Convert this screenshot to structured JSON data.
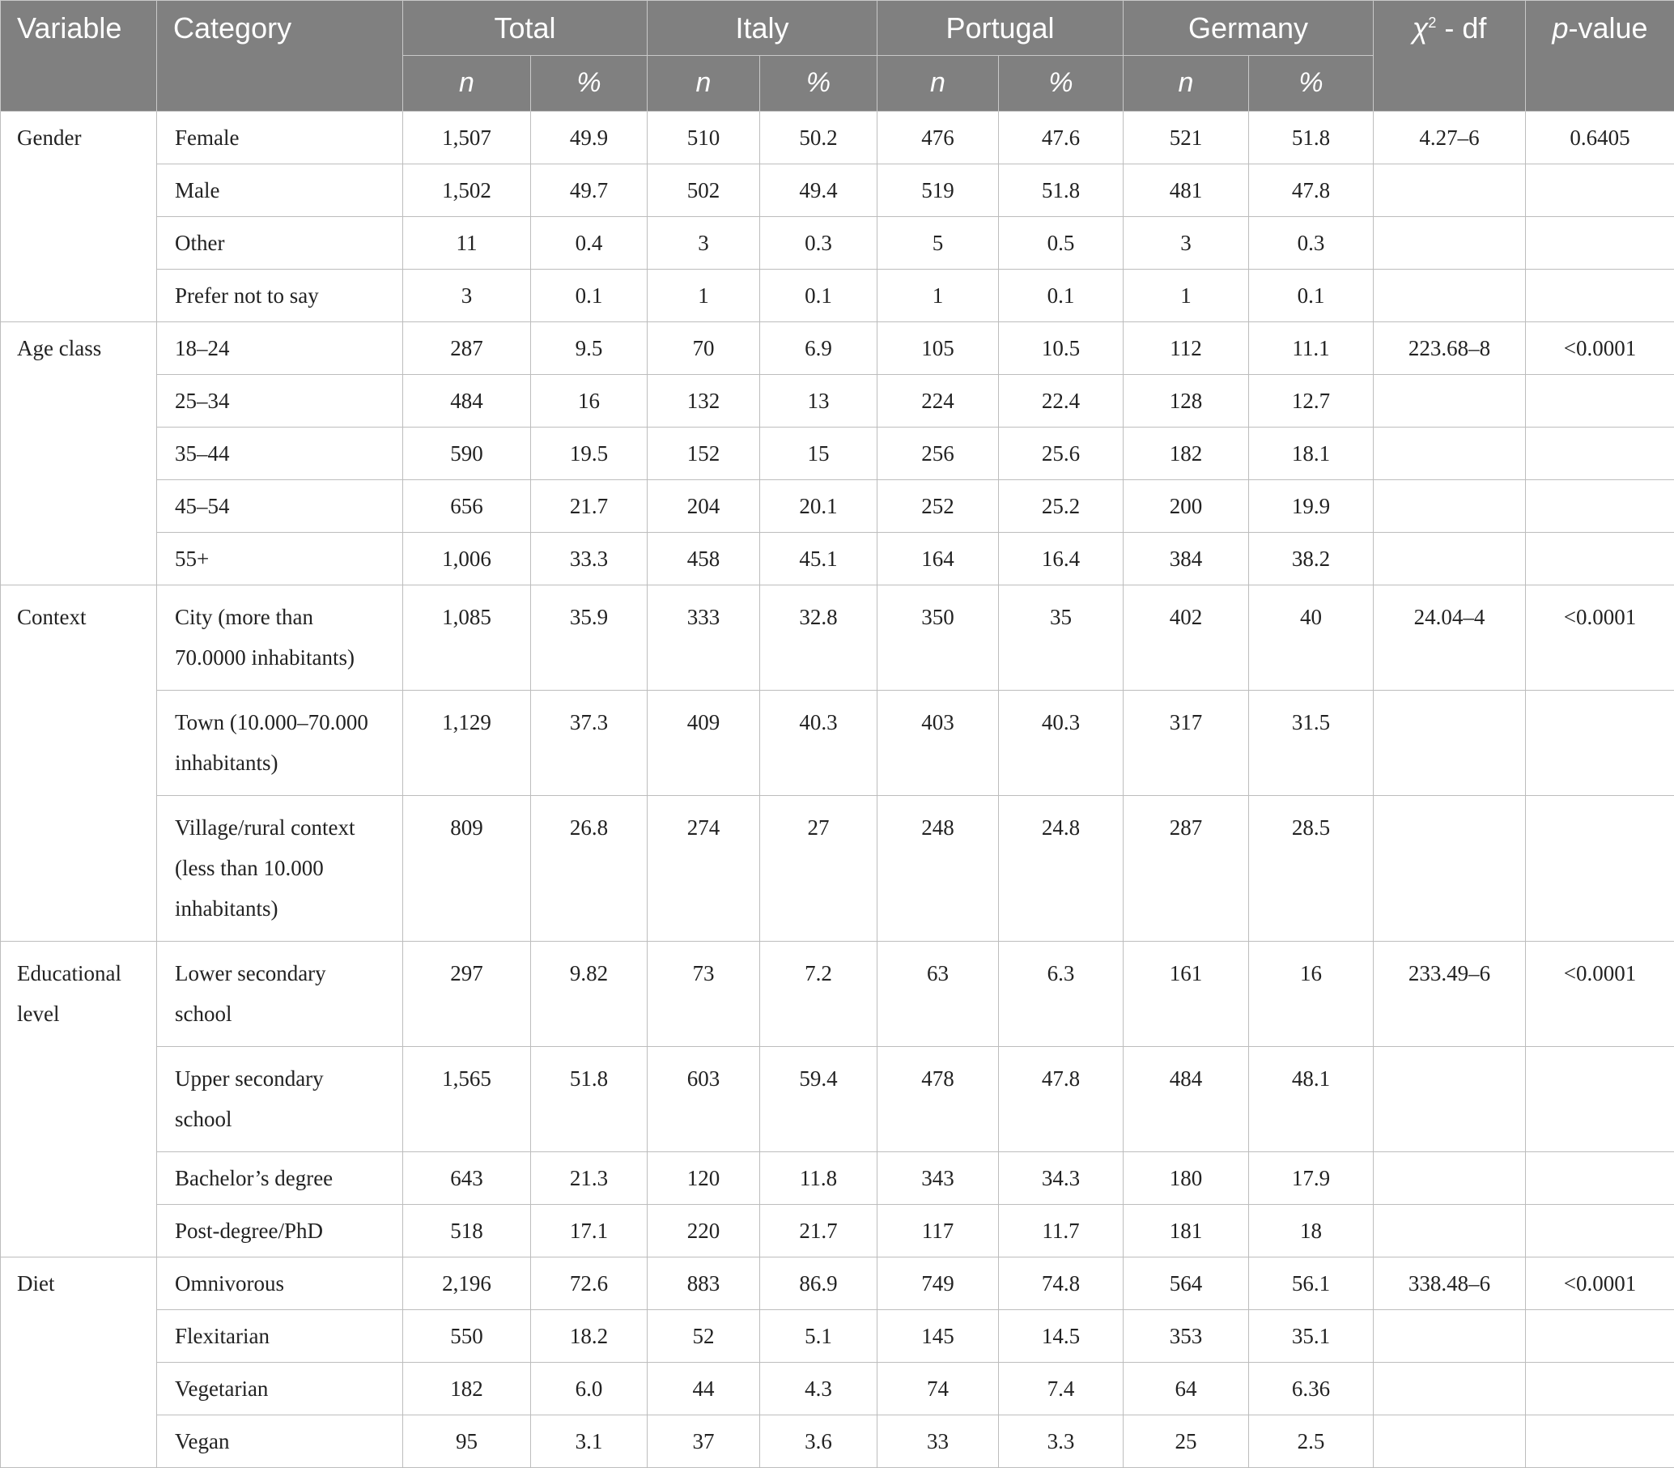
{
  "headers": {
    "variable": "Variable",
    "category": "Category",
    "groups": [
      "Total",
      "Italy",
      "Portugal",
      "Germany"
    ],
    "n": "n",
    "pct": "%",
    "chi_symbol": "χ",
    "chi_sup": "2",
    "chi_rest": " - df",
    "p_italic": "p",
    "p_rest": "-value"
  },
  "sections": [
    {
      "variable": "Gender",
      "chi": "4.27–6",
      "p": "0.6405",
      "rows": [
        {
          "category": "Female",
          "values": [
            "1,507",
            "49.9",
            "510",
            "50.2",
            "476",
            "47.6",
            "521",
            "51.8"
          ]
        },
        {
          "category": "Male",
          "values": [
            "1,502",
            "49.7",
            "502",
            "49.4",
            "519",
            "51.8",
            "481",
            "47.8"
          ]
        },
        {
          "category": "Other",
          "values": [
            "11",
            "0.4",
            "3",
            "0.3",
            "5",
            "0.5",
            "3",
            "0.3"
          ]
        },
        {
          "category": "Prefer not to say",
          "values": [
            "3",
            "0.1",
            "1",
            "0.1",
            "1",
            "0.1",
            "1",
            "0.1"
          ]
        }
      ]
    },
    {
      "variable": "Age class",
      "chi": "223.68–8",
      "p": "<0.0001",
      "rows": [
        {
          "category": "18–24",
          "values": [
            "287",
            "9.5",
            "70",
            "6.9",
            "105",
            "10.5",
            "112",
            "11.1"
          ]
        },
        {
          "category": "25–34",
          "values": [
            "484",
            "16",
            "132",
            "13",
            "224",
            "22.4",
            "128",
            "12.7"
          ]
        },
        {
          "category": "35–44",
          "values": [
            "590",
            "19.5",
            "152",
            "15",
            "256",
            "25.6",
            "182",
            "18.1"
          ]
        },
        {
          "category": "45–54",
          "values": [
            "656",
            "21.7",
            "204",
            "20.1",
            "252",
            "25.2",
            "200",
            "19.9"
          ]
        },
        {
          "category": "55+",
          "values": [
            "1,006",
            "33.3",
            "458",
            "45.1",
            "164",
            "16.4",
            "384",
            "38.2"
          ]
        }
      ]
    },
    {
      "variable": "Context",
      "chi": "24.04–4",
      "p": "<0.0001",
      "rows": [
        {
          "category_lines": [
            "City (more than",
            "70.0000 inhabitants)"
          ],
          "values": [
            "1,085",
            "35.9",
            "333",
            "32.8",
            "350",
            "35",
            "402",
            "40"
          ]
        },
        {
          "category_lines": [
            "Town (10.000–70.000",
            "inhabitants)"
          ],
          "values": [
            "1,129",
            "37.3",
            "409",
            "40.3",
            "403",
            "40.3",
            "317",
            "31.5"
          ]
        },
        {
          "category_lines": [
            "Village/rural context",
            "(less than 10.000",
            "inhabitants)"
          ],
          "values": [
            "809",
            "26.8",
            "274",
            "27",
            "248",
            "24.8",
            "287",
            "28.5"
          ]
        }
      ]
    },
    {
      "variable_lines": [
        "Educational",
        "level"
      ],
      "chi": "233.49–6",
      "p": "<0.0001",
      "rows": [
        {
          "category_lines": [
            "Lower secondary",
            "school"
          ],
          "values": [
            "297",
            "9.82",
            "73",
            "7.2",
            "63",
            "6.3",
            "161",
            "16"
          ]
        },
        {
          "category_lines": [
            "Upper secondary",
            "school"
          ],
          "values": [
            "1,565",
            "51.8",
            "603",
            "59.4",
            "478",
            "47.8",
            "484",
            "48.1"
          ]
        },
        {
          "category": "Bachelor’s degree",
          "values": [
            "643",
            "21.3",
            "120",
            "11.8",
            "343",
            "34.3",
            "180",
            "17.9"
          ]
        },
        {
          "category": "Post-degree/PhD",
          "values": [
            "518",
            "17.1",
            "220",
            "21.7",
            "117",
            "11.7",
            "181",
            "18"
          ]
        }
      ]
    },
    {
      "variable": "Diet",
      "chi": "338.48–6",
      "p": "<0.0001",
      "rows": [
        {
          "category": "Omnivorous",
          "values": [
            "2,196",
            "72.6",
            "883",
            "86.9",
            "749",
            "74.8",
            "564",
            "56.1"
          ]
        },
        {
          "category": "Flexitarian",
          "values": [
            "550",
            "18.2",
            "52",
            "5.1",
            "145",
            "14.5",
            "353",
            "35.1"
          ]
        },
        {
          "category": "Vegetarian",
          "values": [
            "182",
            "6.0",
            "44",
            "4.3",
            "74",
            "7.4",
            "64",
            "6.36"
          ]
        },
        {
          "category": "Vegan",
          "values": [
            "95",
            "3.1",
            "37",
            "3.6",
            "33",
            "3.3",
            "25",
            "2.5"
          ]
        }
      ]
    }
  ]
}
